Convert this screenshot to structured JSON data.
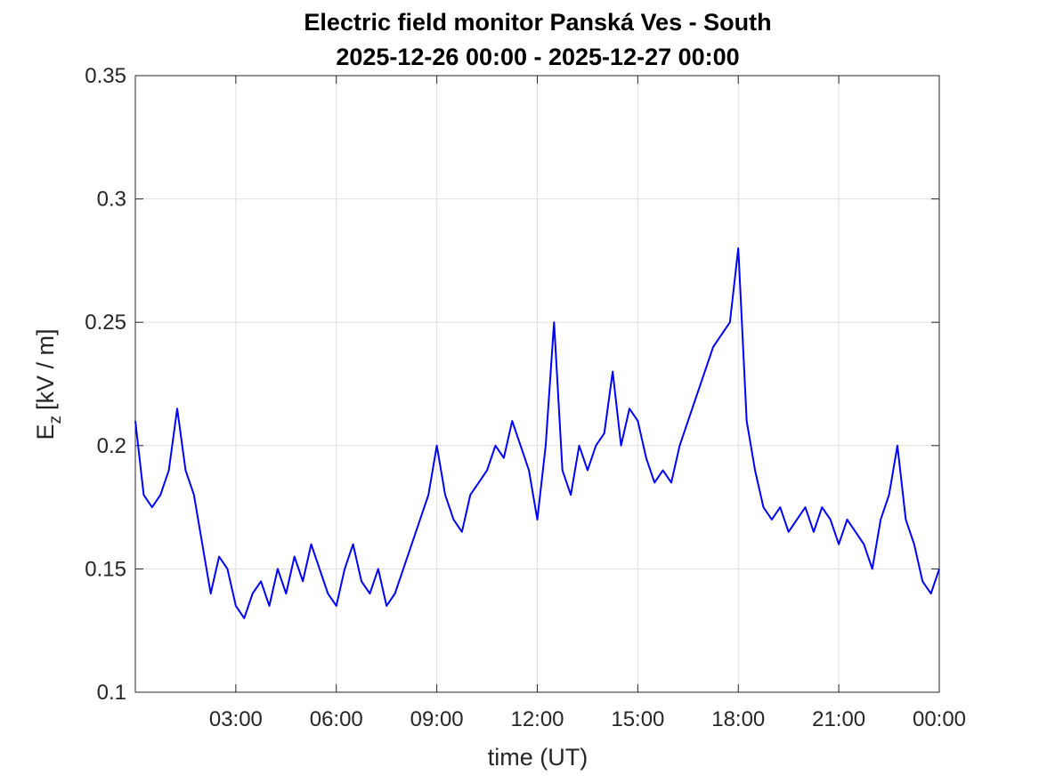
{
  "chart_data": {
    "type": "line",
    "title": "Electric field monitor Panská Ves - South",
    "subtitle": "2025-12-26 00:00 - 2025-12-27 00:00",
    "x_label": "time (UT)",
    "y_label": "E",
    "y_label_subscript": "z",
    "y_label_unit": "[kV / m]",
    "xlim": [
      0,
      24
    ],
    "xticks": [
      {
        "value": 3,
        "label": "03:00"
      },
      {
        "value": 6,
        "label": "06:00"
      },
      {
        "value": 9,
        "label": "09:00"
      },
      {
        "value": 12,
        "label": "12:00"
      },
      {
        "value": 15,
        "label": "15:00"
      },
      {
        "value": 18,
        "label": "18:00"
      },
      {
        "value": 21,
        "label": "21:00"
      },
      {
        "value": 24,
        "label": "00:00"
      }
    ],
    "ylim": [
      0.1,
      0.35
    ],
    "yticks": [
      0.1,
      0.15,
      0.2,
      0.25,
      0.3,
      0.35
    ],
    "grid": true,
    "x": [
      0,
      0.25,
      0.5,
      0.75,
      1,
      1.25,
      1.5,
      1.75,
      2,
      2.25,
      2.5,
      2.75,
      3,
      3.25,
      3.5,
      3.75,
      4,
      4.25,
      4.5,
      4.75,
      5,
      5.25,
      5.5,
      5.75,
      6,
      6.25,
      6.5,
      6.75,
      7,
      7.25,
      7.5,
      7.75,
      8,
      8.25,
      8.5,
      8.75,
      9,
      9.25,
      9.5,
      9.75,
      10,
      10.25,
      10.5,
      10.75,
      11,
      11.25,
      11.5,
      11.75,
      12,
      12.25,
      12.5,
      12.75,
      13,
      13.25,
      13.5,
      13.75,
      14,
      14.25,
      14.5,
      14.75,
      15,
      15.25,
      15.5,
      15.75,
      16,
      16.25,
      16.5,
      16.75,
      17,
      17.25,
      17.5,
      17.75,
      18,
      18.25,
      18.5,
      18.75,
      19,
      19.25,
      19.5,
      19.75,
      20,
      20.25,
      20.5,
      20.75,
      21,
      21.25,
      21.5,
      21.75,
      22,
      22.25,
      22.5,
      22.75,
      23,
      23.25,
      23.5,
      23.75,
      24
    ],
    "series": [
      {
        "name": "Ez",
        "color": "#0000ff",
        "values": [
          0.21,
          0.18,
          0.175,
          0.18,
          0.19,
          0.215,
          0.19,
          0.18,
          0.16,
          0.14,
          0.155,
          0.15,
          0.135,
          0.13,
          0.14,
          0.145,
          0.135,
          0.15,
          0.14,
          0.155,
          0.145,
          0.16,
          0.15,
          0.14,
          0.135,
          0.15,
          0.16,
          0.145,
          0.14,
          0.15,
          0.135,
          0.14,
          0.15,
          0.16,
          0.17,
          0.18,
          0.2,
          0.18,
          0.17,
          0.165,
          0.18,
          0.185,
          0.19,
          0.2,
          0.195,
          0.21,
          0.2,
          0.19,
          0.17,
          0.2,
          0.25,
          0.19,
          0.18,
          0.2,
          0.19,
          0.2,
          0.205,
          0.23,
          0.2,
          0.215,
          0.21,
          0.195,
          0.185,
          0.19,
          0.185,
          0.2,
          0.21,
          0.22,
          0.23,
          0.24,
          0.245,
          0.25,
          0.28,
          0.21,
          0.19,
          0.175,
          0.17,
          0.175,
          0.165,
          0.17,
          0.175,
          0.165,
          0.175,
          0.17,
          0.16,
          0.17,
          0.165,
          0.16,
          0.15,
          0.17,
          0.18,
          0.2,
          0.17,
          0.16,
          0.145,
          0.14,
          0.15
        ]
      }
    ]
  }
}
